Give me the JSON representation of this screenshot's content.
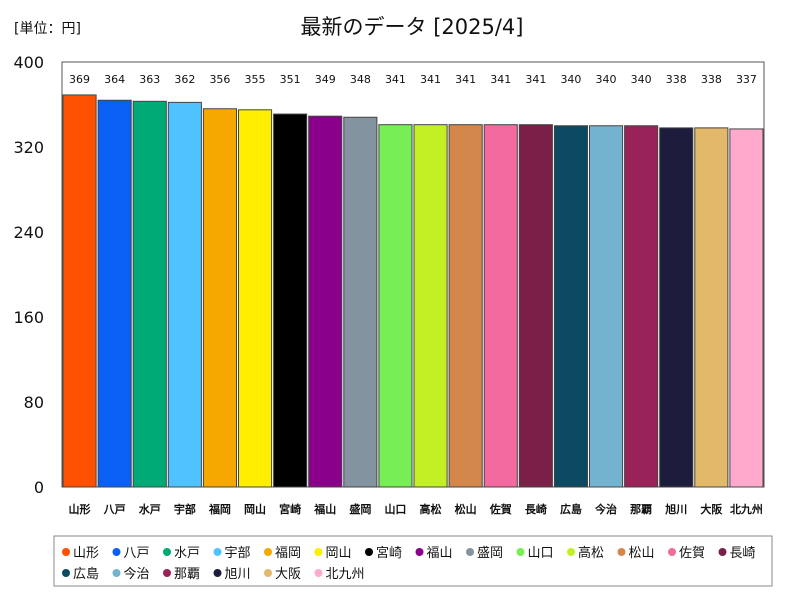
{
  "chart_data": {
    "type": "bar",
    "title": "最新のデータ [2025/4]",
    "unit_label": "[単位：円]",
    "ylim": [
      0,
      400
    ],
    "yticks": [
      0,
      80,
      160,
      240,
      320,
      400
    ],
    "categories": [
      "山形",
      "八戸",
      "水戸",
      "宇部",
      "福岡",
      "岡山",
      "宮崎",
      "福山",
      "盛岡",
      "山口",
      "高松",
      "松山",
      "佐賀",
      "長崎",
      "広島",
      "今治",
      "那覇",
      "旭川",
      "大阪",
      "北九州"
    ],
    "values": [
      369,
      364,
      363,
      362,
      356,
      355,
      351,
      349,
      348,
      341,
      341,
      341,
      341,
      341,
      340,
      340,
      340,
      338,
      338,
      337
    ],
    "colors": [
      "#ff4f00",
      "#0a5ff5",
      "#00aa77",
      "#4fc3ff",
      "#f7a800",
      "#ffee00",
      "#000000",
      "#8b008b",
      "#8394a0",
      "#77ee55",
      "#c3f024",
      "#d4874a",
      "#f26aa0",
      "#7a2048",
      "#0b4a60",
      "#73b3cf",
      "#992358",
      "#1c1c3c",
      "#e2b86b",
      "#ffaacc"
    ],
    "grid": false,
    "legend_position": "bottom"
  }
}
